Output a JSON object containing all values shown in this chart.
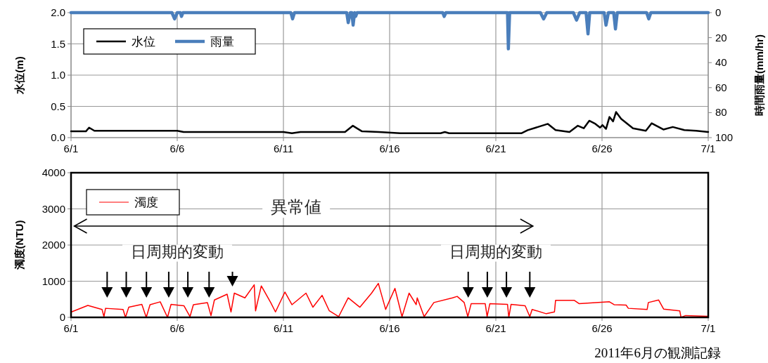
{
  "chart_data": [
    {
      "type": "line",
      "ylabel": "水位(m)",
      "y2label": "時間雨量(mm/hr)",
      "xlim": [
        "2011-06-01",
        "2011-07-01"
      ],
      "xticks": [
        {
          "value": "2011-06-01",
          "label": "6/1"
        },
        {
          "value": "2011-06-06",
          "label": "6/6"
        },
        {
          "value": "2011-06-11",
          "label": "6/11"
        },
        {
          "value": "2011-06-16",
          "label": "6/16"
        },
        {
          "value": "2011-06-21",
          "label": "6/21"
        },
        {
          "value": "2011-06-26",
          "label": "6/26"
        },
        {
          "value": "2011-07-01",
          "label": "7/1"
        }
      ],
      "ylim": [
        0,
        2
      ],
      "yticks": [
        {
          "value": 0,
          "label": "0.0"
        },
        {
          "value": 0.5,
          "label": "0.5"
        },
        {
          "value": 1,
          "label": "1.0"
        },
        {
          "value": 1.5,
          "label": "1.5"
        },
        {
          "value": 2,
          "label": "2.0"
        }
      ],
      "y2lim": [
        100,
        0
      ],
      "y2ticks": [
        0,
        20,
        40,
        60,
        80,
        100
      ],
      "grid": true,
      "legend": "top left",
      "series": [
        {
          "name": "水位",
          "color": "#000000",
          "x": [
            "2011-06-01T00:00",
            "2011-06-01T16:48",
            "2011-06-01T20:24",
            "2011-06-02T02:24",
            "2011-06-06T00:00",
            "2011-06-06T07:12",
            "2011-06-11T00:00",
            "2011-06-11T09:36",
            "2011-06-11T19:12",
            "2011-06-13T21:36",
            "2011-06-14T06:30",
            "2011-06-14T16:48",
            "2011-06-15T12:00",
            "2011-06-16T12:00",
            "2011-06-18T09:36",
            "2011-06-18T14:24",
            "2011-06-18T19:12",
            "2011-06-22T04:48",
            "2011-06-22T12:00",
            "2011-06-23T10:48",
            "2011-06-23T19:30",
            "2011-06-24T11:15",
            "2011-06-24T20:40",
            "2011-06-25T03:20",
            "2011-06-25T09:36",
            "2011-06-25T16:30",
            "2011-06-25T21:50",
            "2011-06-26T00:30",
            "2011-06-26T04:30",
            "2011-06-26T08:24",
            "2011-06-26T12:30",
            "2011-06-26T15:50",
            "2011-06-26T21:36",
            "2011-06-27T11:00",
            "2011-06-28T01:30",
            "2011-06-28T08:10",
            "2011-06-28T21:20",
            "2011-06-29T08:00",
            "2011-06-29T21:00",
            "2011-06-30T10:30",
            "2011-07-01T00:00"
          ],
          "values": [
            0.1,
            0.1,
            0.16,
            0.11,
            0.11,
            0.09,
            0.09,
            0.07,
            0.09,
            0.09,
            0.19,
            0.1,
            0.09,
            0.07,
            0.07,
            0.09,
            0.07,
            0.07,
            0.12,
            0.22,
            0.12,
            0.09,
            0.19,
            0.15,
            0.27,
            0.22,
            0.16,
            0.2,
            0.14,
            0.33,
            0.26,
            0.41,
            0.3,
            0.15,
            0.11,
            0.23,
            0.13,
            0.17,
            0.12,
            0.11,
            0.09
          ]
        },
        {
          "name": "雨量",
          "color": "#4a7ebb",
          "axis": "y2",
          "x": [
            "2011-06-01T00:00",
            "2011-06-05T18:00",
            "2011-06-05T21:00",
            "2011-06-06T00:00",
            "2011-06-06T03:36",
            "2011-06-06T04:48",
            "2011-06-06T06:30",
            "2011-06-11T08:24",
            "2011-06-11T10:20",
            "2011-06-11T12:30",
            "2011-06-13T23:30",
            "2011-06-14T01:12",
            "2011-06-14T03:36",
            "2011-06-14T05:15",
            "2011-06-14T06:45",
            "2011-06-14T08:24",
            "2011-06-14T09:36",
            "2011-06-14T11:15",
            "2011-06-18T12:00",
            "2011-06-18T13:40",
            "2011-06-18T15:36",
            "2011-06-21T13:12",
            "2011-06-21T14:10",
            "2011-06-21T15:36",
            "2011-06-23T02:24",
            "2011-06-23T06:00",
            "2011-06-23T09:36",
            "2011-06-24T15:36",
            "2011-06-24T19:12",
            "2011-06-24T22:48",
            "2011-06-25T06:00",
            "2011-06-25T08:10",
            "2011-06-25T10:05",
            "2011-06-26T02:24",
            "2011-06-26T04:30",
            "2011-06-26T07:12",
            "2011-06-26T13:12",
            "2011-06-26T15:10",
            "2011-06-26T17:15",
            "2011-06-28T02:24",
            "2011-06-28T04:48",
            "2011-06-28T07:12",
            "2011-07-01T00:00"
          ],
          "values": [
            0,
            0,
            5,
            0,
            0,
            3,
            0,
            0,
            5,
            0,
            0,
            8,
            0,
            0,
            10,
            0,
            3,
            0,
            0,
            3,
            0,
            0,
            29,
            0,
            0,
            5,
            0,
            0,
            6,
            0,
            0,
            17,
            0,
            0,
            10,
            0,
            0,
            13,
            0,
            0,
            5,
            0,
            0
          ]
        }
      ]
    },
    {
      "type": "line",
      "ylabel": "濁度(NTU)",
      "xlim": [
        "2011-06-01",
        "2011-07-01"
      ],
      "xticks": [
        {
          "value": "2011-06-01",
          "label": "6/1"
        },
        {
          "value": "2011-06-06",
          "label": "6/6"
        },
        {
          "value": "2011-06-11",
          "label": "6/11"
        },
        {
          "value": "2011-06-16",
          "label": "6/16"
        },
        {
          "value": "2011-06-21",
          "label": "6/21"
        },
        {
          "value": "2011-06-26",
          "label": "6/26"
        },
        {
          "value": "2011-07-01",
          "label": "7/1"
        }
      ],
      "ylim": [
        0,
        4000
      ],
      "yticks": [
        0,
        1000,
        2000,
        3000,
        4000
      ],
      "grid": true,
      "legend": "top left",
      "annotations": [
        "異常値",
        "日周期的変動",
        "日周期的変動",
        "2011年6月の観測記録"
      ],
      "series": [
        {
          "name": "濁度",
          "color": "#ff0000",
          "x": [
            "2011-06-01T00:30",
            "2011-06-01T19:00",
            "2011-06-02T11:00",
            "2011-06-02T13:12",
            "2011-06-02T15:00",
            "2011-06-03T10:48",
            "2011-06-03T13:30",
            "2011-06-03T17:15",
            "2011-06-04T08:00",
            "2011-06-04T13:00",
            "2011-06-04T17:15",
            "2011-06-05T04:48",
            "2011-06-05T13:00",
            "2011-06-05T17:00",
            "2011-06-06T07:40",
            "2011-06-06T14:24",
            "2011-06-06T18:15",
            "2011-06-07T10:05",
            "2011-06-07T14:10",
            "2011-06-07T18:00",
            "2011-06-08T08:24",
            "2011-06-08T12:45",
            "2011-06-08T16:30",
            "2011-06-09T04:30",
            "2011-06-09T15:00",
            "2011-06-09T16:30",
            "2011-06-09T23:00",
            "2011-06-10T09:36",
            "2011-06-10T15:00",
            "2011-06-11T01:40",
            "2011-06-11T09:36",
            "2011-06-12T01:30",
            "2011-06-12T09:20",
            "2011-06-12T19:40",
            "2011-06-13T03:50",
            "2011-06-13T14:24",
            "2011-06-14T01:12",
            "2011-06-14T14:24",
            "2011-06-15T03:36",
            "2011-06-15T11:15",
            "2011-06-15T19:30",
            "2011-06-16T06:00",
            "2011-06-16T14:00",
            "2011-06-16T22:00",
            "2011-06-17T06:00",
            "2011-06-17T07:12",
            "2011-06-17T15:00",
            "2011-06-18T02:00",
            "2011-06-18T23:00",
            "2011-06-19T04:20",
            "2011-06-19T12:15",
            "2011-06-19T16:20",
            "2011-06-19T20:10",
            "2011-06-20T12:00",
            "2011-06-20T14:10",
            "2011-06-20T17:15",
            "2011-06-21T13:12",
            "2011-06-21T14:40",
            "2011-06-21T17:15",
            "2011-06-22T09:10",
            "2011-06-22T14:24",
            "2011-06-22T17:00",
            "2011-06-23T09:00",
            "2011-06-23T18:15",
            "2011-06-23T19:30",
            "2011-06-24T16:48",
            "2011-06-24T22:00",
            "2011-06-26T08:24",
            "2011-06-26T13:40",
            "2011-06-27T03:10",
            "2011-06-27T05:45",
            "2011-06-28T03:00",
            "2011-06-28T04:20",
            "2011-06-28T16:00",
            "2011-06-28T21:36",
            "2011-06-29T15:50",
            "2011-06-29T17:15",
            "2011-06-29T22:30",
            "2011-06-30T23:45"
          ],
          "values": [
            150,
            330,
            220,
            20,
            250,
            220,
            0,
            280,
            360,
            0,
            350,
            430,
            0,
            360,
            320,
            20,
            350,
            410,
            50,
            480,
            640,
            150,
            670,
            540,
            900,
            180,
            870,
            410,
            150,
            700,
            350,
            670,
            280,
            610,
            180,
            20,
            540,
            280,
            670,
            940,
            220,
            800,
            20,
            670,
            350,
            540,
            20,
            410,
            540,
            580,
            410,
            20,
            380,
            380,
            20,
            380,
            360,
            0,
            360,
            320,
            20,
            220,
            100,
            150,
            470,
            470,
            380,
            430,
            350,
            340,
            250,
            220,
            410,
            480,
            230,
            180,
            0,
            50,
            30
          ]
        }
      ]
    }
  ]
}
